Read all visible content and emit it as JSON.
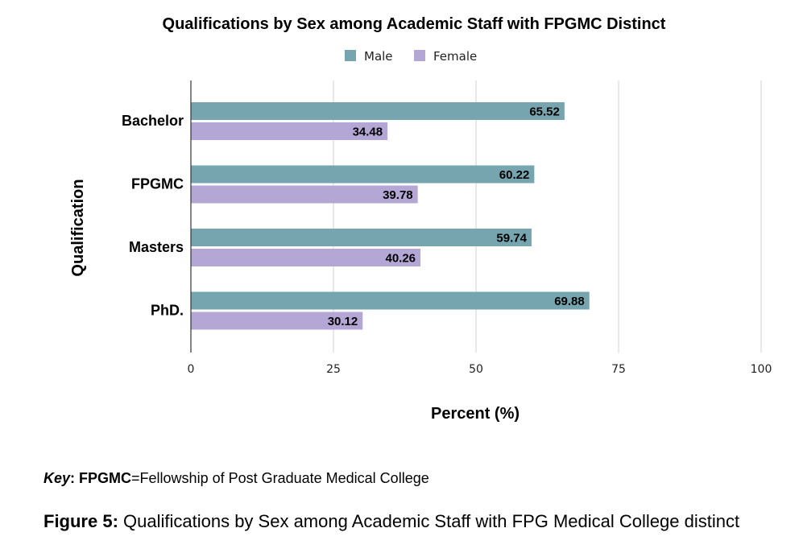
{
  "chart_data": {
    "type": "bar",
    "orientation": "horizontal",
    "title": "Qualifications by Sex among Academic Staff with FPGMC Distinct",
    "xlabel": "Percent (%)",
    "ylabel": "Qualification",
    "categories": [
      "Bachelor",
      "FPGMC",
      "Masters",
      "PhD."
    ],
    "series": [
      {
        "name": "Male",
        "color": "#76a5af",
        "values": [
          65.52,
          60.22,
          59.74,
          69.88
        ]
      },
      {
        "name": "Female",
        "color": "#b4a7d6",
        "values": [
          34.48,
          39.78,
          40.26,
          30.12
        ]
      }
    ],
    "xlim": [
      0,
      100
    ],
    "xticks": [
      0,
      25,
      50,
      75,
      100
    ],
    "grid": true,
    "legend_position": "top-center"
  },
  "key_note": {
    "term": "Key",
    "sep": ": ",
    "abbr": "FPGMC",
    "definition": "=Fellowship of Post Graduate Medical College"
  },
  "caption": {
    "label": "Figure 5:",
    "text": " Qualifications by Sex among Academic Staff with FPG Medical College distinct"
  }
}
